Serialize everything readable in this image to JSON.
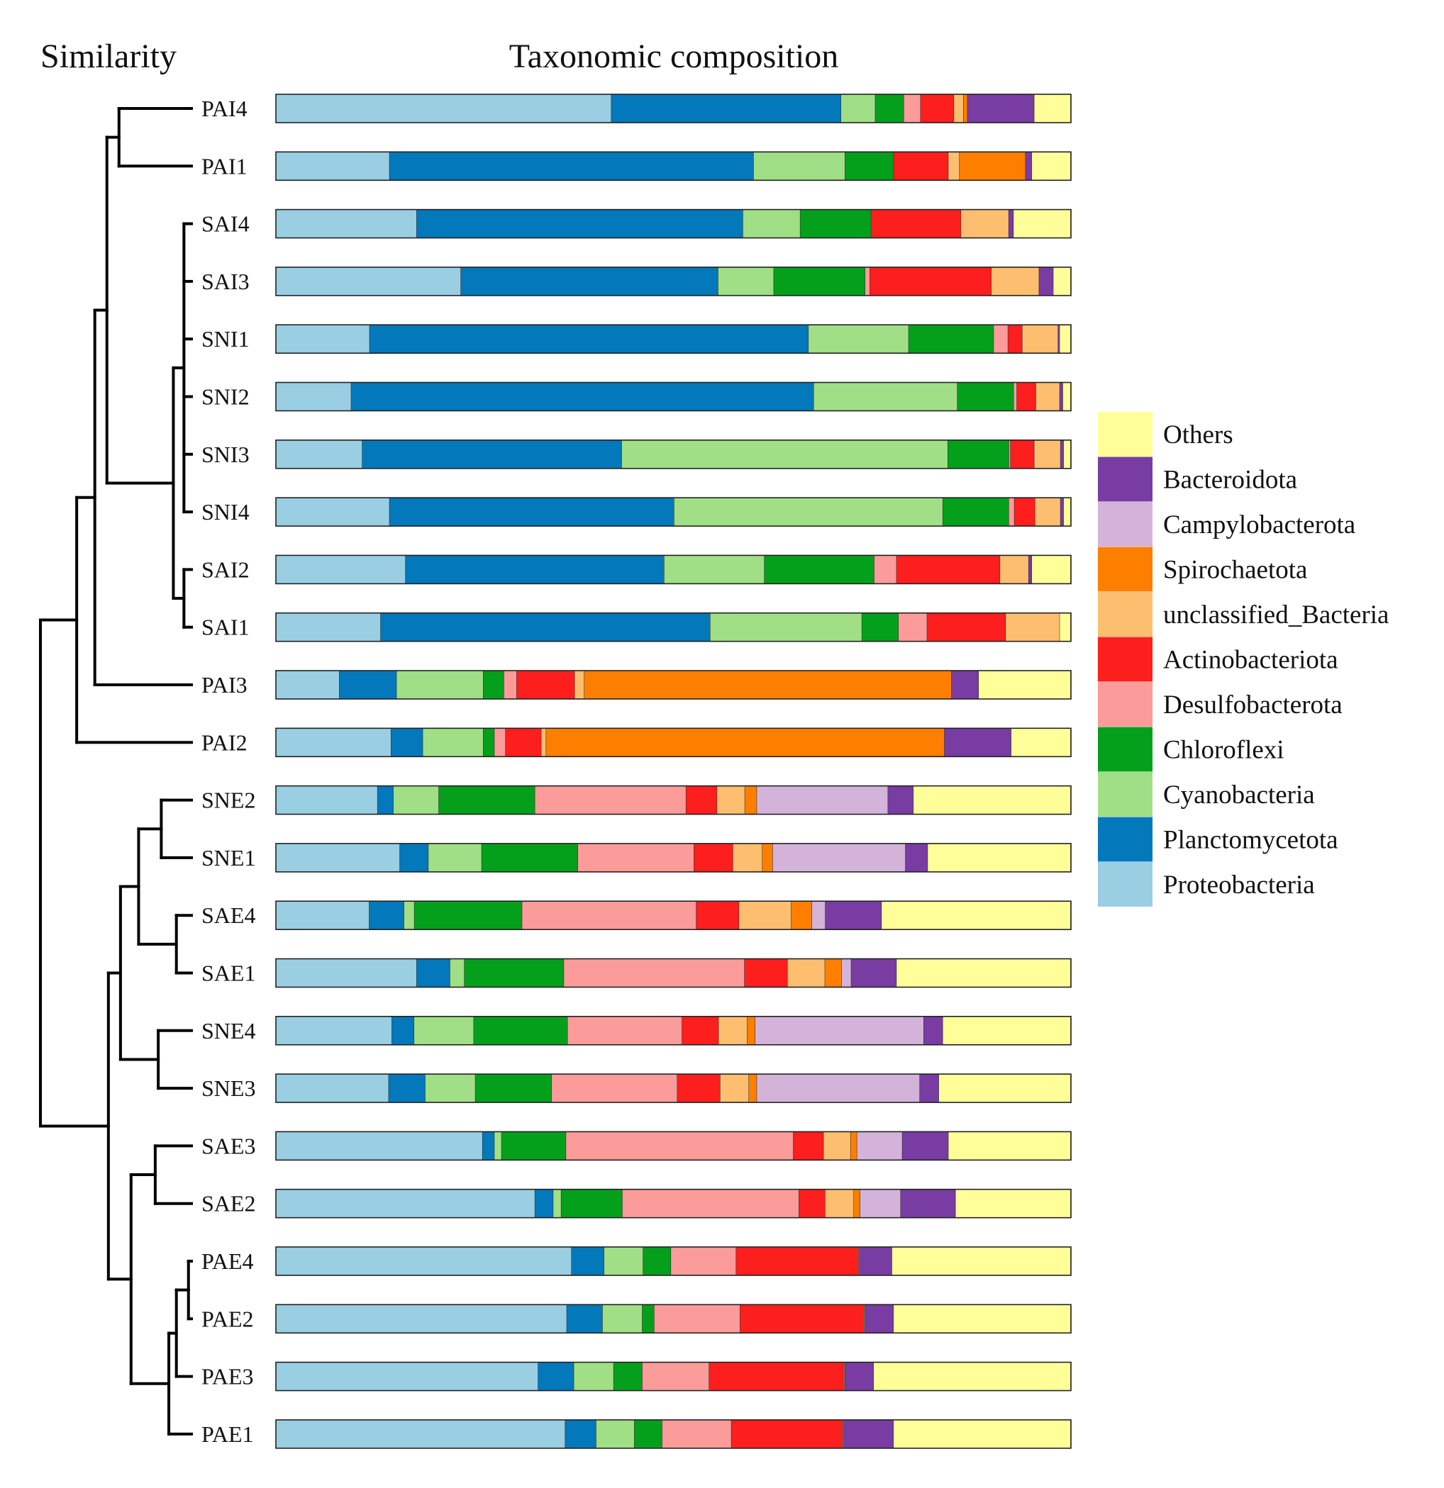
{
  "chart_data": {
    "type": "bar",
    "orientation": "horizontal",
    "stacked": true,
    "units": "percent",
    "xlim": [
      0,
      100
    ],
    "titles": {
      "dendrogram": "Similarity",
      "bars": "Taxonomic composition"
    },
    "legend_placement": "right",
    "series": [
      {
        "name": "Proteobacteria",
        "color": "#99CEE3"
      },
      {
        "name": "Planctomycetota",
        "color": "#0378BB"
      },
      {
        "name": "Cyanobacteria",
        "color": "#A0DF86"
      },
      {
        "name": "Chloroflexi",
        "color": "#04A01C"
      },
      {
        "name": "Desulfobacterota",
        "color": "#FB9C9A"
      },
      {
        "name": "Actinobacteriota",
        "color": "#FD1E1E"
      },
      {
        "name": "unclassified_Bacteria",
        "color": "#FDBF6F"
      },
      {
        "name": "Spirochaetota",
        "color": "#FE7F00"
      },
      {
        "name": "Campylobacterota",
        "color": "#D4B3DA"
      },
      {
        "name": "Bacteroidota",
        "color": "#793CA2"
      },
      {
        "name": "Others",
        "color": "#FFFE99"
      }
    ],
    "legend_order": [
      "Others",
      "Bacteroidota",
      "Campylobacterota",
      "Spirochaetota",
      "unclassified_Bacteria",
      "Actinobacteriota",
      "Desulfobacterota",
      "Chloroflexi",
      "Cyanobacteria",
      "Planctomycetota",
      "Proteobacteria"
    ],
    "samples": [
      {
        "name": "PAI4",
        "values": [
          42.2,
          28.9,
          4.3,
          3.6,
          2.1,
          4.2,
          1.2,
          0.5,
          0,
          8.4,
          4.6
        ]
      },
      {
        "name": "PAI1",
        "values": [
          14.3,
          45.8,
          11.5,
          6.1,
          0,
          6.9,
          1.4,
          8.3,
          0,
          0.8,
          4.9
        ]
      },
      {
        "name": "SAI4",
        "values": [
          17.7,
          41.0,
          7.2,
          8.9,
          0,
          11.3,
          6.0,
          0,
          0,
          0.6,
          7.2
        ]
      },
      {
        "name": "SAI3",
        "values": [
          23.3,
          32.4,
          7.0,
          11.5,
          0.6,
          15.3,
          6.0,
          0,
          0,
          1.8,
          2.2
        ]
      },
      {
        "name": "SNI1",
        "values": [
          11.8,
          55.2,
          12.6,
          10.7,
          1.8,
          1.8,
          4.5,
          0,
          0,
          0.2,
          1.4
        ]
      },
      {
        "name": "SNI2",
        "values": [
          9.5,
          58.3,
          18.1,
          7.1,
          0.4,
          2.4,
          3.0,
          0,
          0,
          0.4,
          1.0
        ]
      },
      {
        "name": "SNI3",
        "values": [
          10.9,
          32.7,
          41.1,
          7.7,
          0.2,
          3.0,
          3.3,
          0,
          0,
          0.4,
          0.9
        ]
      },
      {
        "name": "SNI4",
        "values": [
          14.3,
          35.8,
          33.8,
          8.3,
          0.7,
          2.6,
          3.2,
          0,
          0,
          0.4,
          0.9
        ]
      },
      {
        "name": "SAI2",
        "values": [
          16.3,
          32.5,
          12.6,
          13.8,
          2.8,
          13.0,
          3.6,
          0,
          0,
          0.4,
          4.9
        ]
      },
      {
        "name": "SAI1",
        "values": [
          13.2,
          41.5,
          19.1,
          4.6,
          3.6,
          9.9,
          6.8,
          0,
          0,
          0,
          1.4
        ]
      },
      {
        "name": "PAI3",
        "values": [
          8.0,
          7.2,
          10.9,
          2.6,
          1.6,
          7.3,
          1.2,
          46.2,
          0,
          3.4,
          11.6
        ]
      },
      {
        "name": "PAI2",
        "values": [
          14.5,
          4.0,
          7.6,
          1.4,
          1.4,
          4.5,
          0.6,
          50.1,
          0,
          8.4,
          7.5
        ]
      },
      {
        "name": "SNE2",
        "values": [
          12.8,
          2.0,
          5.7,
          12.1,
          19.0,
          3.9,
          3.5,
          1.5,
          16.5,
          3.2,
          19.8
        ]
      },
      {
        "name": "SNE1",
        "values": [
          15.6,
          3.6,
          6.7,
          12.1,
          14.6,
          4.9,
          3.7,
          1.3,
          16.7,
          2.8,
          18.0
        ]
      },
      {
        "name": "SAE4",
        "values": [
          11.8,
          4.4,
          1.3,
          13.6,
          22.0,
          5.4,
          6.6,
          2.6,
          1.7,
          7.1,
          23.9
        ]
      },
      {
        "name": "SAE1",
        "values": [
          17.7,
          4.2,
          1.8,
          12.5,
          22.7,
          5.4,
          4.7,
          2.1,
          1.2,
          5.7,
          21.9
        ]
      },
      {
        "name": "SNE4",
        "values": [
          14.6,
          2.8,
          7.5,
          11.8,
          14.4,
          4.6,
          3.6,
          1.0,
          21.2,
          2.4,
          16.1
        ]
      },
      {
        "name": "SNE3",
        "values": [
          14.2,
          4.6,
          6.3,
          9.6,
          15.8,
          5.4,
          3.6,
          1.0,
          20.5,
          2.4,
          16.6
        ]
      },
      {
        "name": "SAE3",
        "values": [
          26.0,
          1.5,
          0.9,
          8.1,
          28.6,
          3.8,
          3.4,
          0.8,
          5.7,
          5.8,
          15.4
        ]
      },
      {
        "name": "SAE2",
        "values": [
          32.6,
          2.3,
          1.0,
          7.7,
          22.2,
          3.3,
          3.6,
          0.8,
          5.1,
          6.9,
          14.5
        ]
      },
      {
        "name": "PAE4",
        "values": [
          37.2,
          4.1,
          4.9,
          3.5,
          8.2,
          15.4,
          0.1,
          0,
          0,
          4.1,
          22.5
        ]
      },
      {
        "name": "PAE2",
        "values": [
          36.6,
          4.5,
          5.0,
          1.5,
          10.8,
          15.6,
          0.1,
          0,
          0,
          3.6,
          22.3
        ]
      },
      {
        "name": "PAE3",
        "values": [
          33.0,
          4.5,
          5.0,
          3.6,
          8.4,
          17.0,
          0.1,
          0,
          0,
          3.6,
          24.8
        ]
      },
      {
        "name": "PAE1",
        "values": [
          36.4,
          3.9,
          4.8,
          3.5,
          8.7,
          14.0,
          0.1,
          0,
          0,
          6.3,
          22.3
        ]
      }
    ],
    "dendrogram": {
      "leaf_order": [
        "PAI4",
        "PAI1",
        "SAI4",
        "SAI3",
        "SNI1",
        "SNI2",
        "SNI3",
        "SNI4",
        "SAI2",
        "SAI1",
        "PAI3",
        "PAI2",
        "SNE2",
        "SNE1",
        "SAE4",
        "SAE1",
        "SNE4",
        "SNE3",
        "SAE3",
        "SAE2",
        "PAE4",
        "PAE2",
        "PAE3",
        "PAE1"
      ],
      "merges": [
        {
          "a": {
            "leaf": 0
          },
          "b": {
            "leaf": 1
          },
          "h": 0.48
        },
        {
          "a": {
            "leaf": 2
          },
          "b": {
            "leaf": 3
          },
          "b2": [
            {
              "leaf": 4
            },
            {
              "leaf": 5
            },
            {
              "leaf": 6
            },
            {
              "leaf": 7
            }
          ],
          "members": [
            2,
            3,
            4,
            5,
            6,
            7
          ],
          "h": 0.05
        },
        {
          "a": {
            "leaf": 8
          },
          "b": {
            "leaf": 9
          },
          "h": 0.05
        },
        {
          "a": {
            "node": 1
          },
          "b": {
            "node": 2
          },
          "h": 0.12
        },
        {
          "a": {
            "node": 0
          },
          "b": {
            "node": 3
          },
          "h": 0.56
        },
        {
          "a": {
            "node": 4
          },
          "b": {
            "leaf": 10
          },
          "h": 0.64
        },
        {
          "a": {
            "node": 5
          },
          "b": {
            "leaf": 11
          },
          "h": 0.76
        },
        {
          "a": {
            "leaf": 12
          },
          "b": {
            "leaf": 13
          },
          "h": 0.2
        },
        {
          "a": {
            "leaf": 14
          },
          "b": {
            "leaf": 15
          },
          "h": 0.1
        },
        {
          "a": {
            "node": 7
          },
          "b": {
            "node": 8
          },
          "h": 0.35
        },
        {
          "a": {
            "leaf": 16
          },
          "b": {
            "leaf": 17
          },
          "h": 0.22
        },
        {
          "a": {
            "node": 9
          },
          "b": {
            "node": 10
          },
          "h": 0.47
        },
        {
          "a": {
            "leaf": 18
          },
          "b": {
            "leaf": 19
          },
          "h": 0.24
        },
        {
          "a": {
            "leaf": 20
          },
          "b": {
            "leaf": 21
          },
          "h": 0.02
        },
        {
          "a": {
            "node": 13
          },
          "b": {
            "leaf": 22
          },
          "h": 0.1
        },
        {
          "a": {
            "node": 14
          },
          "b": {
            "leaf": 23
          },
          "h": 0.15
        },
        {
          "a": {
            "node": 12
          },
          "b": {
            "node": 15
          },
          "h": 0.4
        },
        {
          "a": {
            "node": 11
          },
          "b": {
            "node": 16
          },
          "h": 0.55
        },
        {
          "a": {
            "node": 6
          },
          "b": {
            "node": 17
          },
          "h": 1.0
        }
      ]
    }
  }
}
